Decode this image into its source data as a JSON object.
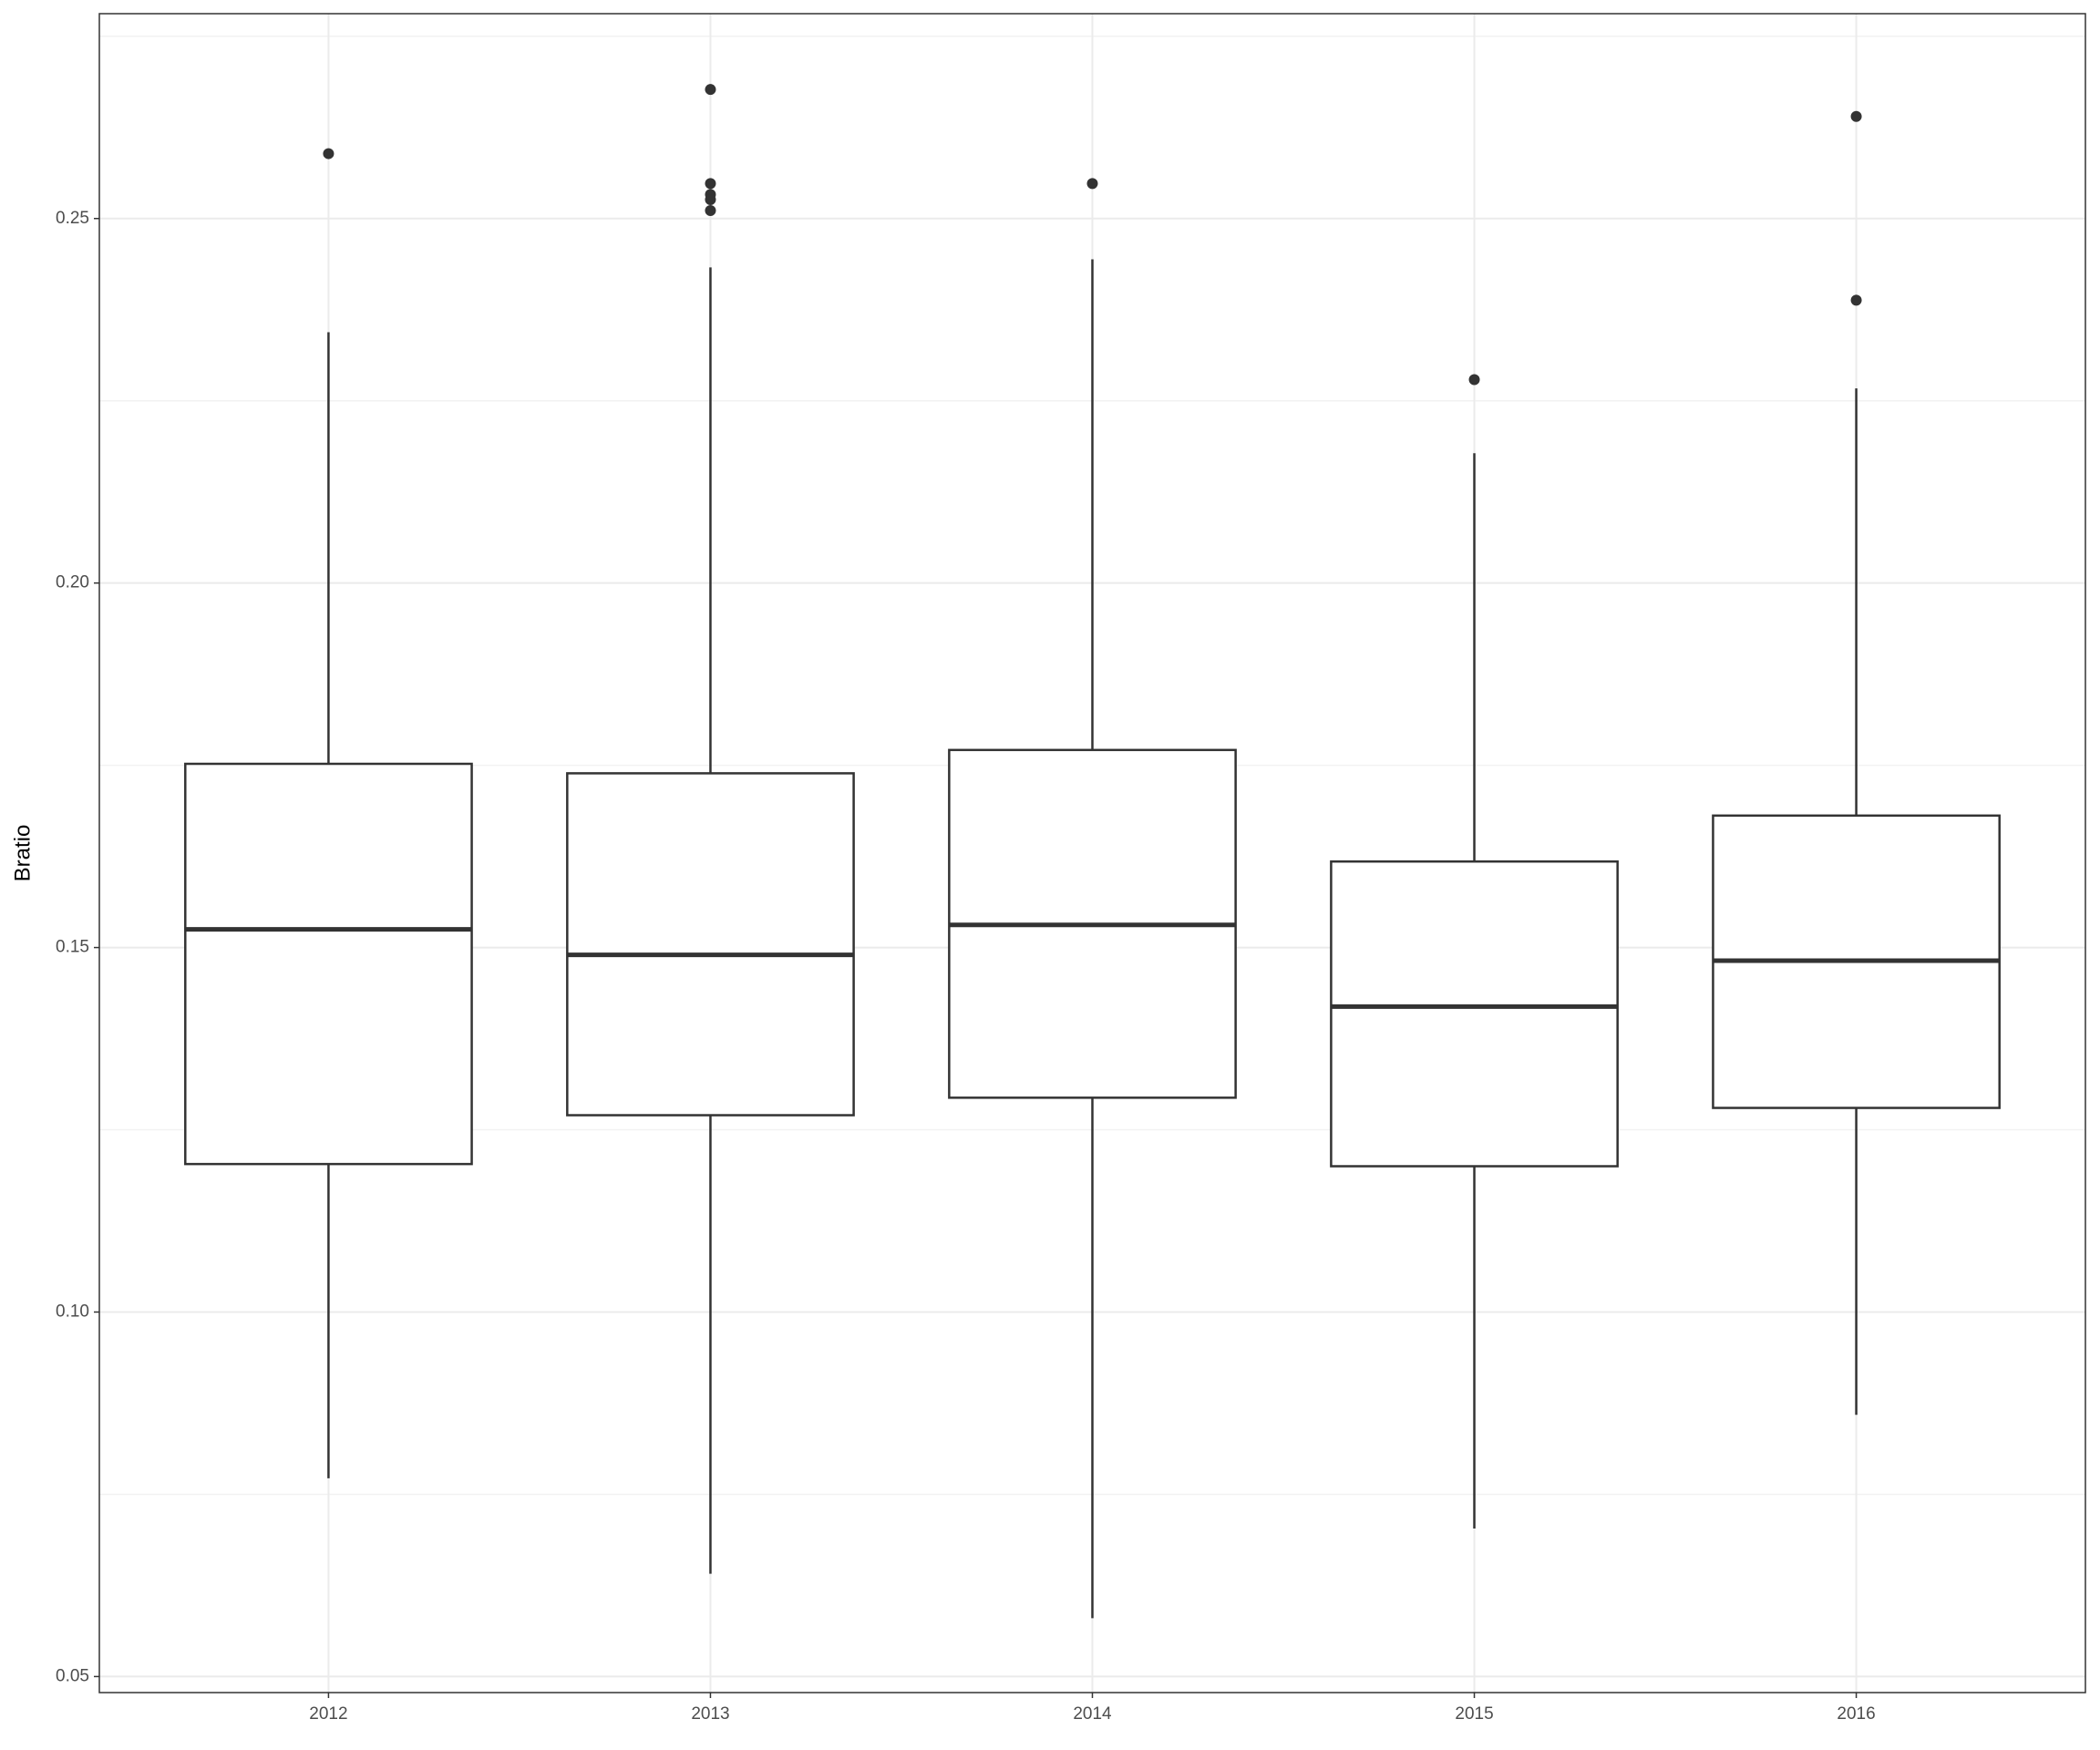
{
  "chart_data": {
    "type": "boxplot",
    "y_label": "Bratio",
    "categories": [
      "2012",
      "2013",
      "2014",
      "2015",
      "2016"
    ],
    "boxes": [
      {
        "whisker_low": 0.0772,
        "q1": 0.1203,
        "median": 0.1525,
        "q3": 0.1752,
        "whisker_high": 0.2344,
        "outliers": [
          0.2589
        ]
      },
      {
        "whisker_low": 0.0641,
        "q1": 0.127,
        "median": 0.149,
        "q3": 0.1739,
        "whisker_high": 0.2433,
        "outliers": [
          0.2677,
          0.2548,
          0.2533,
          0.2526,
          0.2511
        ]
      },
      {
        "whisker_low": 0.058,
        "q1": 0.1294,
        "median": 0.1531,
        "q3": 0.1771,
        "whisker_high": 0.2444,
        "outliers": [
          0.2548
        ]
      },
      {
        "whisker_low": 0.0703,
        "q1": 0.12,
        "median": 0.1419,
        "q3": 0.1618,
        "whisker_high": 0.2178,
        "outliers": [
          0.2279
        ]
      },
      {
        "whisker_low": 0.0859,
        "q1": 0.128,
        "median": 0.1482,
        "q3": 0.1681,
        "whisker_high": 0.2267,
        "outliers": [
          0.264,
          0.2388
        ]
      }
    ],
    "color": "#333333",
    "ylim": [
      0.0478,
      0.2781
    ],
    "yticks": [
      0.05,
      {
        "value": 0.1,
        "label": "0.10"
      },
      0.15,
      {
        "value": 0.2,
        "label": "0.20"
      },
      0.25
    ],
    "minor_yticks": [
      0.075,
      0.125,
      0.175,
      0.225,
      0.275
    ],
    "grid": true
  }
}
